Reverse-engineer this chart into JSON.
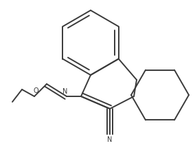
{
  "background_color": "#ffffff",
  "line_color": "#3a3a3a",
  "line_width": 1.4,
  "figsize": [
    2.84,
    2.31
  ],
  "dpi": 100,
  "xlim": [
    0,
    284
  ],
  "ylim": [
    0,
    231
  ]
}
